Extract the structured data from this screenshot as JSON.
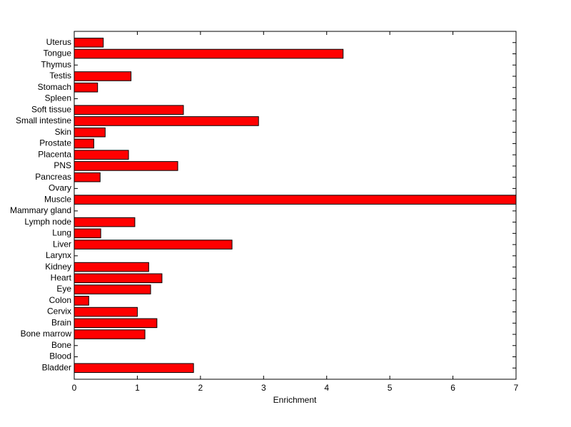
{
  "chart_data": {
    "type": "barh",
    "xlabel": "Enrichment",
    "categories": [
      "Uterus",
      "Tongue",
      "Thymus",
      "Testis",
      "Stomach",
      "Spleen",
      "Soft tissue",
      "Small intestine",
      "Skin",
      "Prostate",
      "Placenta",
      "PNS",
      "Pancreas",
      "Ovary",
      "Muscle",
      "Mammary gland",
      "Lymph node",
      "Lung",
      "Liver",
      "Larynx",
      "Kidney",
      "Heart",
      "Eye",
      "Colon",
      "Cervix",
      "Brain",
      "Bone marrow",
      "Bone",
      "Blood",
      "Bladder"
    ],
    "values": [
      0.46,
      4.26,
      0,
      0.9,
      0.37,
      0,
      1.73,
      2.92,
      0.49,
      0.31,
      0.86,
      1.64,
      0.41,
      0,
      7.0,
      0,
      0.96,
      0.42,
      2.5,
      0,
      1.18,
      1.39,
      1.21,
      0.23,
      1.0,
      1.31,
      1.12,
      0,
      0,
      1.89
    ],
    "color": "#ff0000",
    "xlim": [
      0,
      7
    ],
    "xticks": [
      0,
      1,
      2,
      3,
      4,
      5,
      6,
      7
    ],
    "grid": false
  }
}
